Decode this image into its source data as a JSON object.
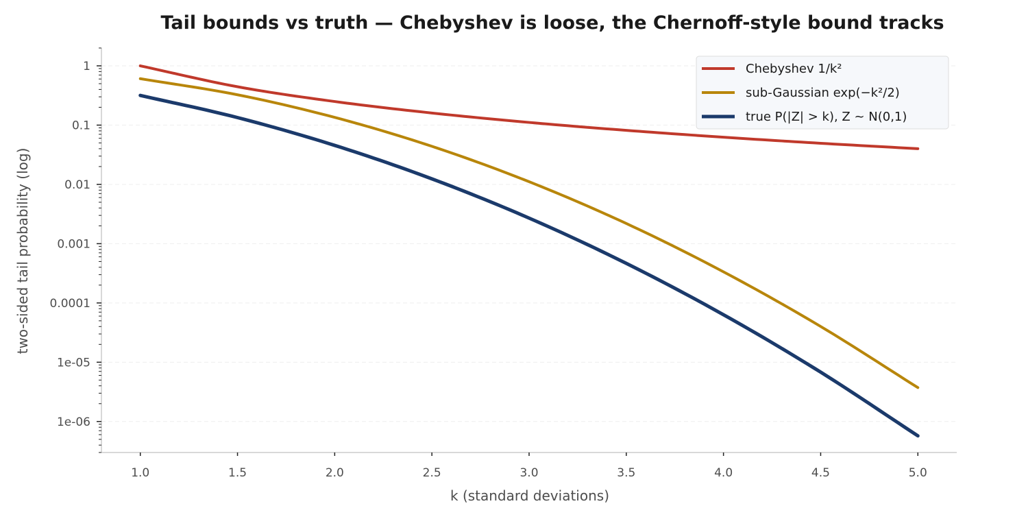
{
  "chart_data": {
    "type": "line",
    "title": "Tail bounds vs truth — Chebyshev is loose, the Chernoff-style bound tracks",
    "xlabel": "k (standard deviations)",
    "ylabel": "two-sided tail probability (log)",
    "xlim": [
      0.8,
      5.2
    ],
    "ylim": [
      3e-07,
      2
    ],
    "yscale": "log",
    "grid": "horizontal dashed",
    "legend_position": "top-right",
    "x_ticks": [
      1.0,
      1.5,
      2.0,
      2.5,
      3.0,
      3.5,
      4.0,
      4.5,
      5.0
    ],
    "x_tick_labels": [
      "1.0",
      "1.5",
      "2.0",
      "2.5",
      "3.0",
      "3.5",
      "4.0",
      "4.5",
      "5.0"
    ],
    "y_ticks": [
      1,
      0.1,
      0.01,
      0.001,
      0.0001,
      1e-05,
      1e-06
    ],
    "y_tick_labels": [
      "1",
      "0.1",
      "0.01",
      "0.001",
      "0.0001",
      "1e-05",
      "1e-06"
    ],
    "x": [
      1.0,
      1.5,
      2.0,
      2.5,
      3.0,
      3.5,
      4.0,
      4.5,
      5.0
    ],
    "series": [
      {
        "name": "Chebyshev 1/k²",
        "color": "#c0392b",
        "values": [
          1.0,
          0.444,
          0.25,
          0.16,
          0.111,
          0.0816,
          0.0625,
          0.0494,
          0.04
        ]
      },
      {
        "name": "sub-Gaussian exp(−k²/2)",
        "color": "#b8860b",
        "values": [
          0.607,
          0.325,
          0.135,
          0.0439,
          0.0111,
          0.00219,
          0.000335,
          4.01e-05,
          3.73e-06
        ]
      },
      {
        "name": "true P(|Z| > k), Z ~ N(0,1)",
        "color": "#1b3a6b",
        "values": [
          0.317,
          0.134,
          0.0455,
          0.0124,
          0.0027,
          0.000465,
          6.33e-05,
          6.8e-06,
          5.73e-07
        ]
      }
    ]
  }
}
